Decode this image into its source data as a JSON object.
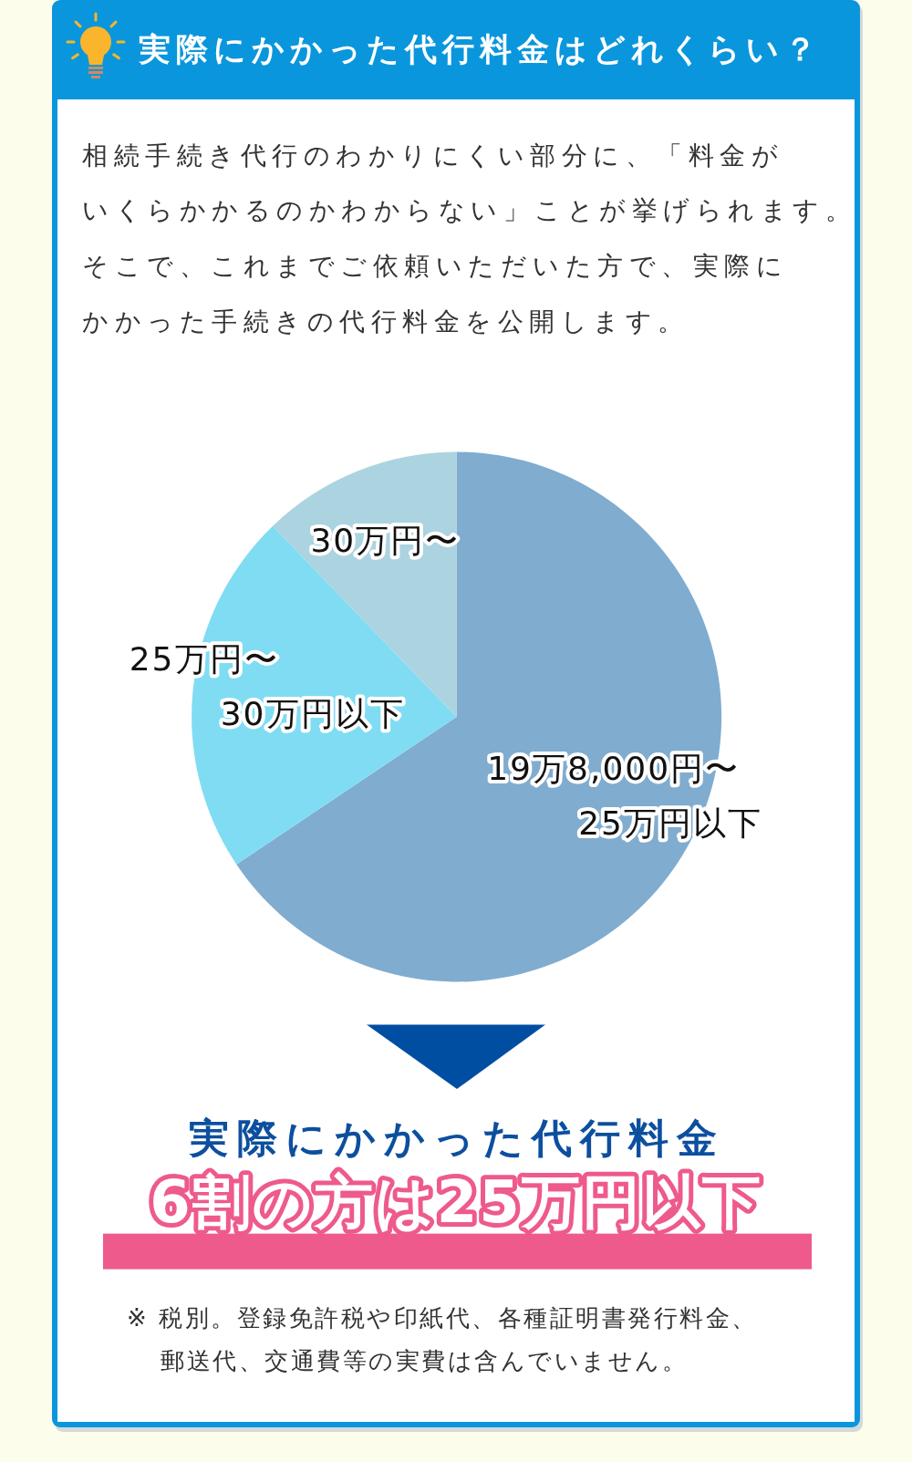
{
  "chart_data": {
    "type": "pie",
    "title": "実際にかかった代行料金はどれくらい？",
    "subtitle": "相続手続き代行のわかりにくい部分に、「料金がいくらかかるのかわからない」ことが挙げられます。そこで、これまでご依頼いただいた方で、実際にかかった手続きの代行料金を公開します。",
    "categories": [
      "19万8,000円〜\n25万円以下",
      "25万円〜\n30万円以下",
      "30万円〜"
    ],
    "values": [
      65.6,
      22.2,
      12.2
    ],
    "colors": [
      "#80accf",
      "#80dcf3",
      "#acd3e0"
    ],
    "annotations": [
      "実際にかかった代行料金",
      "6割の方は25万円以下",
      "※ 税別。登録免許税や印紙代、各種証明書発行料金、郵送代、交通費等の実費は含んでいません。"
    ]
  }
}
